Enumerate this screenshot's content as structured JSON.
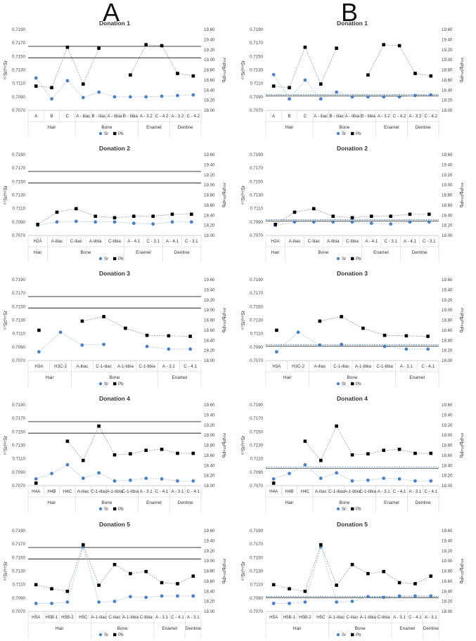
{
  "figure": {
    "label_a": "A",
    "label_b": "B"
  },
  "colors": {
    "sr": "#4f81bd",
    "pb": "#000000",
    "ref": "#222222",
    "band": "#2e75b6"
  },
  "chart_data": [
    {
      "type": "scatter",
      "panel": "A",
      "title": "Donation 1",
      "ylabel": "⁸⁷Sr/⁸⁶Sr",
      "y2label": "²⁰⁶Pb/²⁰⁴Pb",
      "ylim": [
        0.707,
        0.719
      ],
      "yticks": [
        "0.7070",
        "0.7090",
        "0.7110",
        "0.7130",
        "0.7150",
        "0.7170",
        "0.7190"
      ],
      "y2lim": [
        18.0,
        19.6
      ],
      "y2ticks": [
        "18.00",
        "18.20",
        "18.40",
        "18.60",
        "18.80",
        "19.00",
        "19.20",
        "19.40",
        "19.60"
      ],
      "categories": [
        "A",
        "B",
        "C",
        "A - iliac",
        "B - iliac",
        "A - tibia",
        "B - tibia",
        "A - 3.2",
        "C - 4.2",
        "A - 3.2",
        "C - 4.2"
      ],
      "groups": [
        {
          "name": "Hair",
          "start": 0,
          "end": 2
        },
        {
          "name": "Bone",
          "start": 3,
          "end": 6
        },
        {
          "name": "Enamel",
          "start": 7,
          "end": 8
        },
        {
          "name": "Dentine",
          "start": 9,
          "end": 10
        }
      ],
      "series": [
        {
          "name": "Sr",
          "values": [
            0.7118,
            0.7087,
            0.7114,
            0.7089,
            0.7097,
            0.709,
            0.709,
            0.709,
            0.7091,
            0.7092,
            0.7093
          ]
        },
        {
          "name": "Pb",
          "values": [
            18.48,
            18.45,
            19.25,
            18.52,
            19.23,
            null,
            18.7,
            19.3,
            19.28,
            18.73,
            18.68
          ]
        }
      ],
      "reference_lines": [
        {
          "axis": "sr",
          "value": 0.7165
        },
        {
          "axis": "sr",
          "value": 0.7148
        }
      ],
      "legend": [
        "Sr",
        "Pb"
      ]
    },
    {
      "type": "scatter",
      "panel": "B",
      "title": "Donation 1",
      "ylabel": "⁸⁷Sr/⁸⁶Sr",
      "y2label": "²⁰⁶Pb/²⁰⁴Pb",
      "ylim": [
        0.707,
        0.719
      ],
      "yticks": [
        "0.7070",
        "0.7090",
        "0.7110",
        "0.7130",
        "0.7150",
        "0.7170",
        "0.7190"
      ],
      "y2lim": [
        18.0,
        19.6
      ],
      "y2ticks": [
        "18.00",
        "18.20",
        "18.40",
        "18.60",
        "18.80",
        "19.00",
        "19.20",
        "19.40",
        "19.60"
      ],
      "categories": [
        "A",
        "B",
        "C",
        "A - iliac",
        "B - iliac",
        "A - tibia",
        "B - tibia",
        "A - 3.2",
        "C - 4.2",
        "A - 3.2",
        "C - 4.2"
      ],
      "groups": [
        {
          "name": "Hair",
          "start": 0,
          "end": 2
        },
        {
          "name": "Bone",
          "start": 3,
          "end": 6
        },
        {
          "name": "Enamel",
          "start": 7,
          "end": 8
        },
        {
          "name": "Dentine",
          "start": 9,
          "end": 10
        }
      ],
      "series": [
        {
          "name": "Sr",
          "values": [
            0.7123,
            0.7087,
            0.7115,
            0.7087,
            0.7097,
            0.709,
            0.709,
            0.709,
            0.709,
            0.7092,
            0.7093
          ]
        },
        {
          "name": "Pb",
          "values": [
            18.48,
            18.45,
            19.25,
            18.52,
            19.23,
            null,
            18.7,
            19.3,
            19.28,
            18.73,
            18.68
          ]
        }
      ],
      "reference_band": [
        0.70915,
        0.70935
      ],
      "legend": [
        "Sr",
        "Pb"
      ]
    },
    {
      "type": "scatter",
      "panel": "A",
      "title": "Donation 2",
      "ylabel": "⁸⁷Sr/⁸⁶Sr",
      "y2label": "²⁰⁶Pb/²⁰⁴Pb",
      "ylim": [
        0.707,
        0.719
      ],
      "yticks": [
        "0.7070",
        "0.7090",
        "0.7110",
        "0.7130",
        "0.7150",
        "0.7170",
        "0.7190"
      ],
      "y2lim": [
        18.0,
        19.6
      ],
      "y2ticks": [
        "18.00",
        "18.20",
        "18.40",
        "18.60",
        "18.80",
        "19.00",
        "19.20",
        "19.40",
        "19.60"
      ],
      "categories": [
        "H2A",
        "A-iliac",
        "C-iliac",
        "A-tibia",
        "C-tibia",
        "A - 4.1",
        "C - 3.1",
        "A - 4.1",
        "C - 3.1"
      ],
      "groups": [
        {
          "name": "Hair",
          "start": 0,
          "end": 0
        },
        {
          "name": "Bone",
          "start": 1,
          "end": 4
        },
        {
          "name": "Enamel",
          "start": 5,
          "end": 6
        },
        {
          "name": "Dentine",
          "start": 7,
          "end": 8
        }
      ],
      "series": [
        {
          "name": "Sr",
          "values": [
            0.7085,
            0.709,
            0.7091,
            0.709,
            0.709,
            0.7088,
            0.7087,
            0.709,
            0.709
          ]
        },
        {
          "name": "Pb",
          "values": [
            18.22,
            18.46,
            18.53,
            18.38,
            18.35,
            18.38,
            18.38,
            18.42,
            18.42
          ]
        }
      ],
      "reference_lines": [
        {
          "axis": "sr",
          "value": 0.7165
        },
        {
          "axis": "sr",
          "value": 0.7148
        }
      ],
      "legend": [
        "Sr",
        "Pb"
      ]
    },
    {
      "type": "scatter",
      "panel": "B",
      "title": "Donation 2",
      "ylabel": "⁸⁷Sr/⁸⁶Sr",
      "y2label": "²⁰⁶Pb/²⁰⁴Pb",
      "ylim": [
        0.707,
        0.719
      ],
      "yticks": [
        "0.7070",
        "0.7090",
        "0.7110",
        "0.7130",
        "0.7150",
        "0.7170",
        "0.7190"
      ],
      "y2lim": [
        18.0,
        19.6
      ],
      "y2ticks": [
        "18.00",
        "18.20",
        "18.40",
        "18.60",
        "18.80",
        "19.00",
        "19.20",
        "19.40",
        "19.60"
      ],
      "categories": [
        "H2A",
        "A-iliac",
        "C-iliac",
        "A-tibia",
        "C-tibia",
        "A - 4.1",
        "C - 3.1",
        "A - 4.1",
        "C - 3.1"
      ],
      "groups": [
        {
          "name": "Hair",
          "start": 0,
          "end": 0
        },
        {
          "name": "Bone",
          "start": 1,
          "end": 4
        },
        {
          "name": "Enamel",
          "start": 5,
          "end": 6
        },
        {
          "name": "Dentine",
          "start": 7,
          "end": 8
        }
      ],
      "series": [
        {
          "name": "Sr",
          "values": [
            0.7085,
            0.709,
            0.709,
            0.709,
            0.709,
            0.7088,
            0.7087,
            0.709,
            0.709
          ]
        },
        {
          "name": "Pb",
          "values": [
            18.22,
            18.46,
            18.53,
            18.38,
            18.35,
            18.38,
            18.38,
            18.42,
            18.42
          ]
        }
      ],
      "reference_band": [
        0.70915,
        0.70935
      ],
      "legend": [
        "Sr",
        "Pb"
      ]
    },
    {
      "type": "scatter",
      "panel": "A",
      "title": "Donation 3",
      "ylabel": "⁸⁷Sr/⁸⁶Sr",
      "y2label": "²⁰⁶Pb/²⁰⁴Pb",
      "ylim": [
        0.707,
        0.719
      ],
      "yticks": [
        "0.7070",
        "0.7090",
        "0.7110",
        "0.7130",
        "0.7150",
        "0.7170",
        "0.7190"
      ],
      "y2lim": [
        18.0,
        19.6
      ],
      "y2ticks": [
        "18.00",
        "18.20",
        "18.40",
        "18.60",
        "18.80",
        "19.00",
        "19.20",
        "19.40",
        "19.60"
      ],
      "categories": [
        "H3A",
        "H3C-2",
        "A-iliac",
        "C-1-iliac",
        "A-1-tibia",
        "C-1-tibia",
        "A - 3.1",
        "C - 4.1"
      ],
      "groups": [
        {
          "name": "Hair",
          "start": 0,
          "end": 1
        },
        {
          "name": "Bone",
          "start": 2,
          "end": 5
        },
        {
          "name": "Enamel",
          "start": 6,
          "end": 7
        }
      ],
      "series": [
        {
          "name": "Sr",
          "values": [
            0.7083,
            0.7112,
            0.7093,
            0.7094,
            null,
            0.7091,
            0.7087,
            0.7087
          ]
        },
        {
          "name": "Pb",
          "values": [
            18.6,
            null,
            18.78,
            18.87,
            18.64,
            18.5,
            18.49,
            18.48
          ]
        }
      ],
      "reference_lines": [
        {
          "axis": "sr",
          "value": 0.7165
        },
        {
          "axis": "sr",
          "value": 0.7148
        }
      ],
      "legend": [
        "Sr",
        "Pb"
      ]
    },
    {
      "type": "scatter",
      "panel": "B",
      "title": "Donation 3",
      "ylabel": "⁸⁷Sr/⁸⁶Sr",
      "y2label": "²⁰⁶Pb/²⁰⁴Pb",
      "ylim": [
        0.707,
        0.719
      ],
      "yticks": [
        "0.7070",
        "0.7090",
        "0.7110",
        "0.7130",
        "0.7150",
        "0.7170",
        "0.7190"
      ],
      "y2lim": [
        18.0,
        19.6
      ],
      "y2ticks": [
        "18.00",
        "18.20",
        "18.40",
        "18.60",
        "18.80",
        "19.00",
        "19.20",
        "19.40",
        "19.60"
      ],
      "categories": [
        "H3A",
        "H3C-2",
        "A-iliac",
        "C-1-iliac",
        "A-1-tibia",
        "C-1-tibia",
        "A - 3.1",
        "C - 4.1"
      ],
      "groups": [
        {
          "name": "Hair",
          "start": 0,
          "end": 1
        },
        {
          "name": "Bone",
          "start": 2,
          "end": 5
        },
        {
          "name": "Enamel",
          "start": 6,
          "end": 7
        }
      ],
      "series": [
        {
          "name": "Sr",
          "values": [
            0.7083,
            0.7112,
            0.7093,
            0.7094,
            null,
            0.7091,
            0.7087,
            0.7087
          ]
        },
        {
          "name": "Pb",
          "values": [
            18.6,
            null,
            18.78,
            18.87,
            18.64,
            18.5,
            18.49,
            18.48
          ]
        }
      ],
      "reference_band": [
        0.70915,
        0.70935
      ],
      "legend": [
        "Sr",
        "Pb"
      ]
    },
    {
      "type": "scatter",
      "panel": "A",
      "title": "Donation 4",
      "ylabel": "⁸⁷Sr/⁸⁶Sr",
      "y2label": "²⁰⁶Pb/²⁰⁴Pb",
      "ylim": [
        0.707,
        0.719
      ],
      "yticks": [
        "0.7070",
        "0.7090",
        "0.7110",
        "0.7130",
        "0.7150",
        "0.7170",
        "0.7190"
      ],
      "y2lim": [
        18.0,
        19.6
      ],
      "y2ticks": [
        "18.00",
        "18.20",
        "18.40",
        "18.60",
        "18.80",
        "19.00",
        "19.20",
        "19.40",
        "19.60"
      ],
      "categories": [
        "H4A",
        "H4B",
        "H4C",
        "A-iliac",
        "C-1-iliac",
        "A-1-tibia",
        "C-1-tibia",
        "A - 3.1",
        "C - 4.1",
        "A - 3.1",
        "C - 4.1"
      ],
      "groups": [
        {
          "name": "Hair",
          "start": 0,
          "end": 2
        },
        {
          "name": "Bone",
          "start": 3,
          "end": 6
        },
        {
          "name": "Enamel",
          "start": 7,
          "end": 8
        },
        {
          "name": "Dentine",
          "start": 9,
          "end": 10
        }
      ],
      "series": [
        {
          "name": "Sr",
          "values": [
            0.708,
            0.7088,
            0.7101,
            0.7081,
            0.7089,
            0.7077,
            0.7078,
            0.7081,
            0.708,
            0.7077,
            0.7077
          ]
        },
        {
          "name": "Pb",
          "values": [
            18.05,
            null,
            18.88,
            18.5,
            19.18,
            18.61,
            18.63,
            18.7,
            18.72,
            18.64,
            18.64
          ]
        }
      ],
      "reference_lines": [
        {
          "axis": "sr",
          "value": 0.7165
        },
        {
          "axis": "sr",
          "value": 0.7148
        }
      ],
      "legend": [
        "Sr",
        "Pb"
      ]
    },
    {
      "type": "scatter",
      "panel": "B",
      "title": "Donation 4",
      "ylabel": "⁸⁷Sr/⁸⁶Sr",
      "y2label": "²⁰⁶Pb/²⁰⁴Pb",
      "ylim": [
        0.707,
        0.719
      ],
      "yticks": [
        "0.7070",
        "0.7090",
        "0.7110",
        "0.7130",
        "0.7150",
        "0.7170",
        "0.7190"
      ],
      "y2lim": [
        18.0,
        19.6
      ],
      "y2ticks": [
        "18.00",
        "18.20",
        "18.40",
        "18.60",
        "18.80",
        "19.00",
        "19.20",
        "19.40",
        "19.60"
      ],
      "categories": [
        "H4A",
        "H4B",
        "H4C",
        "A-iliac",
        "C-1-iliac",
        "A-1-tibia",
        "C-1-tibia",
        "A - 3.1",
        "C - 4.1",
        "A - 3.1",
        "C - 4.1"
      ],
      "groups": [
        {
          "name": "Hair",
          "start": 0,
          "end": 2
        },
        {
          "name": "Bone",
          "start": 3,
          "end": 6
        },
        {
          "name": "Enamel",
          "start": 7,
          "end": 8
        },
        {
          "name": "Dentine",
          "start": 9,
          "end": 10
        }
      ],
      "series": [
        {
          "name": "Sr",
          "values": [
            0.708,
            0.7088,
            0.7101,
            0.7081,
            0.7089,
            0.7077,
            0.7078,
            0.7081,
            0.708,
            0.7077,
            0.7077
          ]
        },
        {
          "name": "Pb",
          "values": [
            18.05,
            null,
            18.88,
            18.5,
            19.18,
            18.61,
            18.63,
            18.7,
            18.72,
            18.64,
            18.64
          ]
        }
      ],
      "reference_band": [
        0.70955,
        0.70975
      ],
      "legend": [
        "Sr",
        "Pb"
      ]
    },
    {
      "type": "scatter",
      "panel": "A",
      "title": "Donation 5",
      "ylabel": "⁸⁷Sr/⁸⁶Sr",
      "y2label": "²⁰⁶Pb/²⁰⁴Pb",
      "ylim": [
        0.707,
        0.719
      ],
      "yticks": [
        "0.7070",
        "0.7090",
        "0.7110",
        "0.7130",
        "0.7150",
        "0.7170",
        "0.7190"
      ],
      "y2lim": [
        18.0,
        19.6
      ],
      "y2ticks": [
        "18.00",
        "18.20",
        "18.40",
        "18.60",
        "18.80",
        "19.00",
        "19.20",
        "19.40",
        "19.60"
      ],
      "categories": [
        "H5A",
        "H5B-1",
        "H5B-2",
        "H5C",
        "A-1-iliac",
        "C-iliac",
        "A-1-tibia",
        "C-tibia",
        "A - 3.1",
        "C - 4.1",
        "A - 3.1"
      ],
      "groups": [
        {
          "name": "Hair",
          "start": 0,
          "end": 3
        },
        {
          "name": "Bone",
          "start": 4,
          "end": 7
        },
        {
          "name": "Enamel",
          "start": 8,
          "end": 9
        },
        {
          "name": "Dentine",
          "start": 10,
          "end": 10
        }
      ],
      "series": [
        {
          "name": "Sr",
          "values": [
            0.7082,
            0.7082,
            0.7084,
            0.7166,
            0.7084,
            0.7085,
            0.7092,
            0.7091,
            0.7093,
            0.7093,
            0.7093
          ]
        },
        {
          "name": "Pb",
          "values": [
            18.53,
            18.45,
            18.4,
            19.32,
            18.52,
            18.93,
            18.75,
            18.79,
            18.57,
            18.55,
            18.7
          ]
        }
      ],
      "reference_lines": [
        {
          "axis": "sr",
          "value": 0.7165
        },
        {
          "axis": "sr",
          "value": 0.7148
        }
      ],
      "legend": [
        "Sr",
        "Pb"
      ]
    },
    {
      "type": "scatter",
      "panel": "B",
      "title": "Donation 5",
      "ylabel": "⁸⁷Sr/⁸⁶Sr",
      "y2label": "²⁰⁶Pb/²⁰⁴Pb",
      "ylim": [
        0.707,
        0.719
      ],
      "yticks": [
        "0.7070",
        "0.7090",
        "0.7110",
        "0.7130",
        "0.7150",
        "0.7170",
        "0.7190"
      ],
      "y2lim": [
        18.0,
        19.6
      ],
      "y2ticks": [
        "18.00",
        "18.20",
        "18.40",
        "18.60",
        "18.80",
        "19.00",
        "19.20",
        "19.40",
        "19.60"
      ],
      "categories": [
        "H5A",
        "H5B-1",
        "H5B-2",
        "H5C",
        "A-1-iliac",
        "C-iliac",
        "A-1-tibia",
        "C-tibia",
        "A - 3.1",
        "C - 4.1",
        "A - 3.1"
      ],
      "groups": [
        {
          "name": "Hair",
          "start": 0,
          "end": 3
        },
        {
          "name": "Bone",
          "start": 4,
          "end": 7
        },
        {
          "name": "Enamel",
          "start": 8,
          "end": 9
        },
        {
          "name": "Dentine",
          "start": 10,
          "end": 10
        }
      ],
      "series": [
        {
          "name": "Sr",
          "values": [
            0.7082,
            0.7082,
            0.7084,
            0.7166,
            0.7084,
            0.7085,
            0.7092,
            0.7091,
            0.7093,
            0.7093,
            0.7093
          ]
        },
        {
          "name": "Pb",
          "values": [
            18.53,
            18.45,
            18.4,
            19.32,
            18.52,
            18.93,
            18.75,
            18.79,
            18.57,
            18.55,
            18.7
          ]
        }
      ],
      "reference_band": [
        0.70905,
        0.70925
      ],
      "legend": [
        "Sr",
        "Pb"
      ]
    }
  ]
}
